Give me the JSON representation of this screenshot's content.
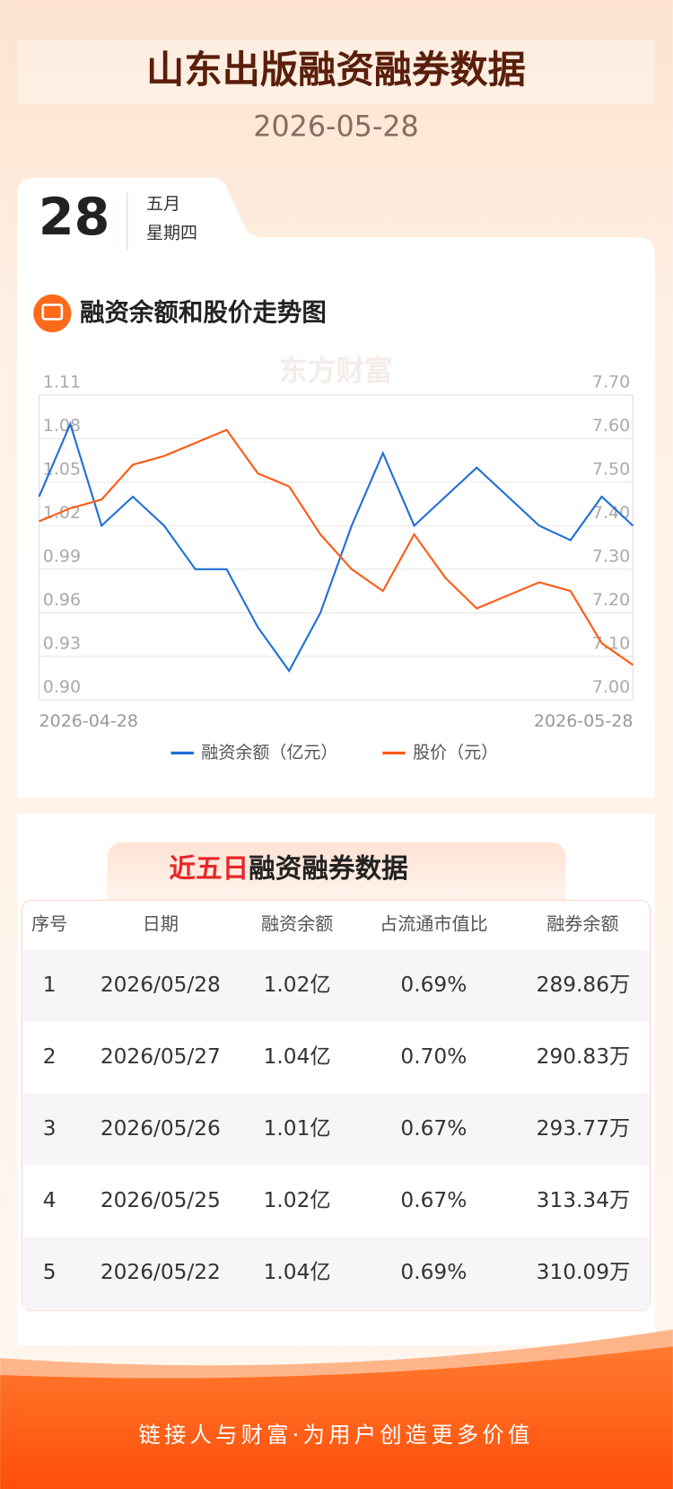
{
  "header": {
    "title": "山东出版融资融券数据",
    "date": "2026-05-28"
  },
  "date_badge": {
    "day": "28",
    "month": "五月",
    "weekday": "星期四"
  },
  "watermark": "东方财富",
  "chart_section_title": "融资余额和股价走势图",
  "chart_data": {
    "type": "line",
    "categories": [
      "2026-04-28",
      null,
      null,
      null,
      null,
      null,
      null,
      null,
      null,
      null,
      null,
      null,
      null,
      null,
      null,
      null,
      null,
      null,
      null,
      "2026-05-28"
    ],
    "series": [
      {
        "name": "融资余额（亿元）",
        "color": "#1f6fd6",
        "values": [
          1.04,
          1.09,
          1.02,
          1.04,
          1.02,
          0.99,
          0.99,
          0.95,
          0.92,
          0.96,
          1.02,
          1.07,
          1.02,
          1.04,
          1.06,
          1.04,
          1.02,
          1.01,
          1.04,
          1.02
        ]
      },
      {
        "name": "股价（元）",
        "color": "#ff5a14",
        "axis": "y2",
        "values": [
          7.41,
          7.44,
          7.46,
          7.54,
          7.56,
          7.59,
          7.62,
          7.52,
          7.49,
          7.38,
          7.3,
          7.25,
          7.38,
          7.28,
          7.21,
          7.24,
          7.27,
          7.25,
          7.13,
          7.08
        ]
      }
    ],
    "ylim": [
      0.9,
      1.11
    ],
    "yticks": [
      {
        "value": 0.9,
        "label": "0.90"
      },
      0.93,
      0.96,
      0.99,
      1.02,
      1.05,
      1.08,
      1.11
    ],
    "y2lim": [
      7,
      7.7
    ],
    "y2ticks": [
      {
        "value": 7,
        "label": "7.00"
      },
      {
        "value": 7.1,
        "label": "7.10"
      },
      {
        "value": 7.2,
        "label": "7.20"
      },
      {
        "value": 7.3,
        "label": "7.30"
      },
      {
        "value": 7.4,
        "label": "7.40"
      },
      {
        "value": 7.5,
        "label": "7.50"
      },
      {
        "value": 7.6,
        "label": "7.60"
      },
      {
        "value": 7.7,
        "label": "7.70"
      }
    ],
    "grid": true,
    "legend": "bottom"
  },
  "table_title": {
    "highlight": "近五日",
    "rest": "融资融券数据"
  },
  "table": {
    "columns": [
      "序号",
      "日期",
      "融资余额",
      "占流通市值比",
      "融券余额"
    ],
    "rows": [
      [
        "1",
        "2026/05/28",
        "1.02亿",
        "0.69%",
        "289.86万"
      ],
      [
        "2",
        "2026/05/27",
        "1.04亿",
        "0.70%",
        "290.83万"
      ],
      [
        "3",
        "2026/05/26",
        "1.01亿",
        "0.67%",
        "293.77万"
      ],
      [
        "4",
        "2026/05/25",
        "1.02亿",
        "0.67%",
        "313.34万"
      ],
      [
        "5",
        "2026/05/22",
        "1.04亿",
        "0.69%",
        "310.09万"
      ]
    ]
  },
  "footer": {
    "slogan": "链接人与财富·为用户创造更多价值"
  }
}
